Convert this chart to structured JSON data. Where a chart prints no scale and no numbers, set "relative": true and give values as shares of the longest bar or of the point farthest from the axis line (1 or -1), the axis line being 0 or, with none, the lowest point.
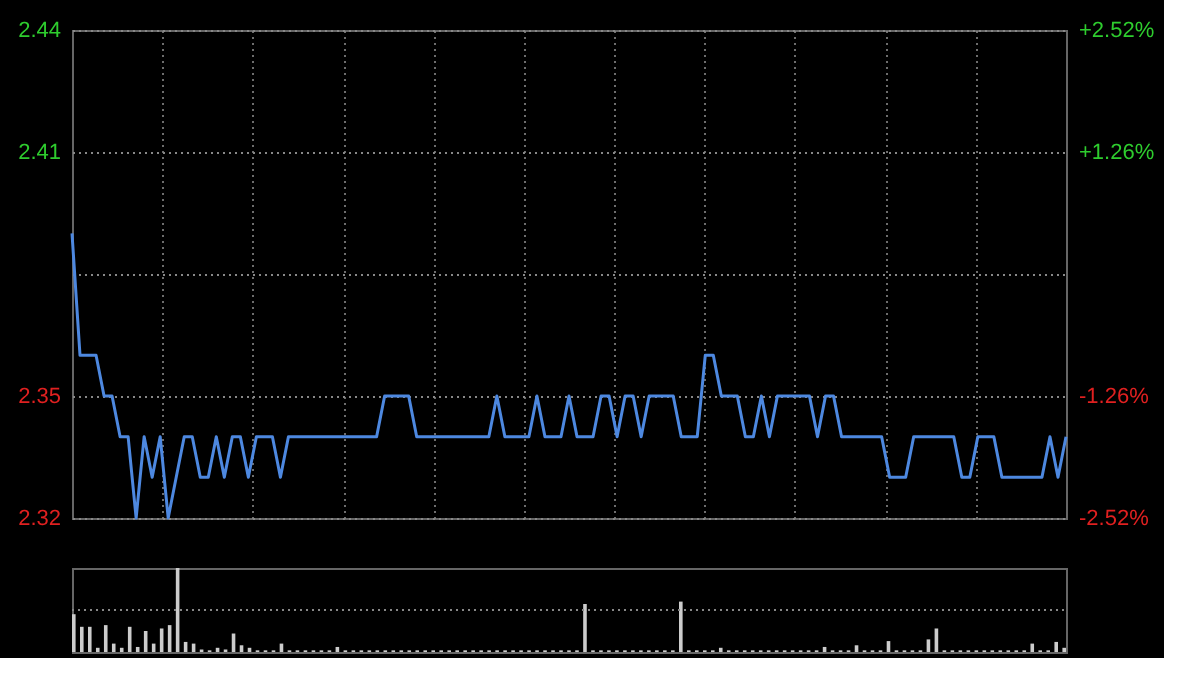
{
  "chart_data": [
    {
      "type": "line",
      "categories": [
        null,
        null,
        null,
        null,
        null,
        null,
        null,
        null,
        null,
        null,
        null,
        null,
        null,
        null,
        null,
        null,
        null,
        null,
        null,
        null,
        null,
        null,
        null,
        null,
        null,
        null,
        null,
        null,
        null,
        null,
        null,
        null,
        null,
        null,
        null,
        null,
        null,
        null,
        null,
        null,
        null,
        null,
        null,
        null,
        null,
        null,
        null,
        null,
        null,
        null,
        null,
        null,
        null,
        null,
        null,
        null,
        null,
        null,
        null,
        null,
        null,
        null,
        null,
        null,
        null,
        null,
        null,
        null,
        null,
        null,
        null,
        null,
        null,
        null,
        null,
        null,
        null,
        null,
        null,
        null,
        null,
        null,
        null,
        null,
        null,
        null,
        null,
        null,
        null,
        null,
        null,
        null,
        null,
        null,
        null,
        null,
        null,
        null,
        null,
        null,
        null,
        null,
        null,
        null,
        null,
        null,
        null,
        null,
        null,
        null,
        null,
        null,
        null,
        null,
        null,
        null,
        null,
        null,
        null,
        null,
        null,
        null,
        null,
        null,
        null
      ],
      "series": [
        {
          "color": "#4d88e0",
          "values": [
            2.39,
            2.36,
            2.36,
            2.36,
            2.35,
            2.35,
            2.34,
            2.34,
            2.32,
            2.34,
            2.33,
            2.34,
            2.32,
            2.33,
            2.34,
            2.34,
            2.33,
            2.33,
            2.34,
            2.33,
            2.34,
            2.34,
            2.33,
            2.34,
            2.34,
            2.34,
            2.33,
            2.34,
            2.34,
            2.34,
            2.34,
            2.34,
            2.34,
            2.34,
            2.34,
            2.34,
            2.34,
            2.34,
            2.34,
            2.35,
            2.35,
            2.35,
            2.35,
            2.34,
            2.34,
            2.34,
            2.34,
            2.34,
            2.34,
            2.34,
            2.34,
            2.34,
            2.34,
            2.35,
            2.34,
            2.34,
            2.34,
            2.34,
            2.35,
            2.34,
            2.34,
            2.34,
            2.35,
            2.34,
            2.34,
            2.34,
            2.35,
            2.35,
            2.34,
            2.35,
            2.35,
            2.34,
            2.35,
            2.35,
            2.35,
            2.35,
            2.34,
            2.34,
            2.34,
            2.36,
            2.36,
            2.35,
            2.35,
            2.35,
            2.34,
            2.34,
            2.35,
            2.34,
            2.35,
            2.35,
            2.35,
            2.35,
            2.35,
            2.34,
            2.35,
            2.35,
            2.34,
            2.34,
            2.34,
            2.34,
            2.34,
            2.34,
            2.33,
            2.33,
            2.33,
            2.34,
            2.34,
            2.34,
            2.34,
            2.34,
            2.34,
            2.33,
            2.33,
            2.34,
            2.34,
            2.34,
            2.33,
            2.33,
            2.33,
            2.33,
            2.33,
            2.33,
            2.34,
            2.33,
            2.34
          ]
        }
      ],
      "ylim": [
        2.32,
        2.44
      ],
      "yticks": [
        2.44,
        2.41,
        {
          "value": 2.38,
          "label": null
        },
        2.35,
        2.32
      ],
      "y2lim": [
        -2.52,
        2.52
      ],
      "y2ticks": [
        {
          "value": 2.52,
          "label": "+2.52%"
        },
        {
          "value": 1.26,
          "label": "+1.26%"
        },
        {
          "value": 0,
          "label": null
        },
        {
          "value": -1.26,
          "label": "-1.26%"
        },
        {
          "value": -2.52,
          "label": "-2.52%"
        }
      ],
      "grid": true,
      "tick_labels": "y",
      "legend": false
    },
    {
      "type": "bar",
      "relative": true,
      "color": "#cccccc",
      "ref_lines": [
        {
          "axis": "y",
          "value": 0.5
        }
      ],
      "tick_labels": false,
      "categories": [
        null,
        null,
        null,
        null,
        null,
        null,
        null,
        null,
        null,
        null,
        null,
        null,
        null,
        null,
        null,
        null,
        null,
        null,
        null,
        null,
        null,
        null,
        null,
        null,
        null,
        null,
        null,
        null,
        null,
        null,
        null,
        null,
        null,
        null,
        null,
        null,
        null,
        null,
        null,
        null,
        null,
        null,
        null,
        null,
        null,
        null,
        null,
        null,
        null,
        null,
        null,
        null,
        null,
        null,
        null,
        null,
        null,
        null,
        null,
        null,
        null,
        null,
        null,
        null,
        null,
        null,
        null,
        null,
        null,
        null,
        null,
        null,
        null,
        null,
        null,
        null,
        null,
        null,
        null,
        null,
        null,
        null,
        null,
        null,
        null,
        null,
        null,
        null,
        null,
        null,
        null,
        null,
        null,
        null,
        null,
        null,
        null,
        null,
        null,
        null,
        null,
        null,
        null,
        null,
        null,
        null,
        null,
        null,
        null,
        null,
        null,
        null,
        null,
        null,
        null,
        null,
        null,
        null,
        null,
        null,
        null,
        null,
        null,
        null,
        null
      ],
      "values": [
        0.45,
        0.3,
        0.3,
        0.05,
        0.32,
        0.1,
        0.05,
        0.3,
        0.06,
        0.25,
        0.1,
        0.28,
        0.32,
        1,
        0.12,
        0.1,
        0.03,
        0.02,
        0.05,
        0.03,
        0.22,
        0.08,
        0.05,
        0.02,
        0.02,
        0.02,
        0.1,
        0.02,
        0.02,
        0.02,
        0.02,
        0.02,
        0.02,
        0.06,
        0.02,
        0.02,
        0.02,
        0.02,
        0.02,
        0.02,
        0.02,
        0.02,
        0.02,
        0.02,
        0.02,
        0.02,
        0.02,
        0.02,
        0.02,
        0.02,
        0.02,
        0.02,
        0.02,
        0.02,
        0.02,
        0.02,
        0.02,
        0.02,
        0.02,
        0.02,
        0.02,
        0.02,
        0.02,
        0.02,
        0.57,
        0.02,
        0.02,
        0.02,
        0.02,
        0.02,
        0.02,
        0.02,
        0.02,
        0.02,
        0.02,
        0.02,
        0.6,
        0.02,
        0.02,
        0.02,
        0.02,
        0.05,
        0.02,
        0.02,
        0.02,
        0.02,
        0.02,
        0.02,
        0.02,
        0.02,
        0.02,
        0.02,
        0.02,
        0.02,
        0.06,
        0.02,
        0.02,
        0.02,
        0.08,
        0.02,
        0.02,
        0.02,
        0.13,
        0.02,
        0.02,
        0.02,
        0.02,
        0.15,
        0.28,
        0.02,
        0.02,
        0.02,
        0.02,
        0.02,
        0.02,
        0.02,
        0.02,
        0.02,
        0.02,
        0.02,
        0.1,
        0.02,
        0.02,
        0.12,
        0.05
      ]
    }
  ]
}
